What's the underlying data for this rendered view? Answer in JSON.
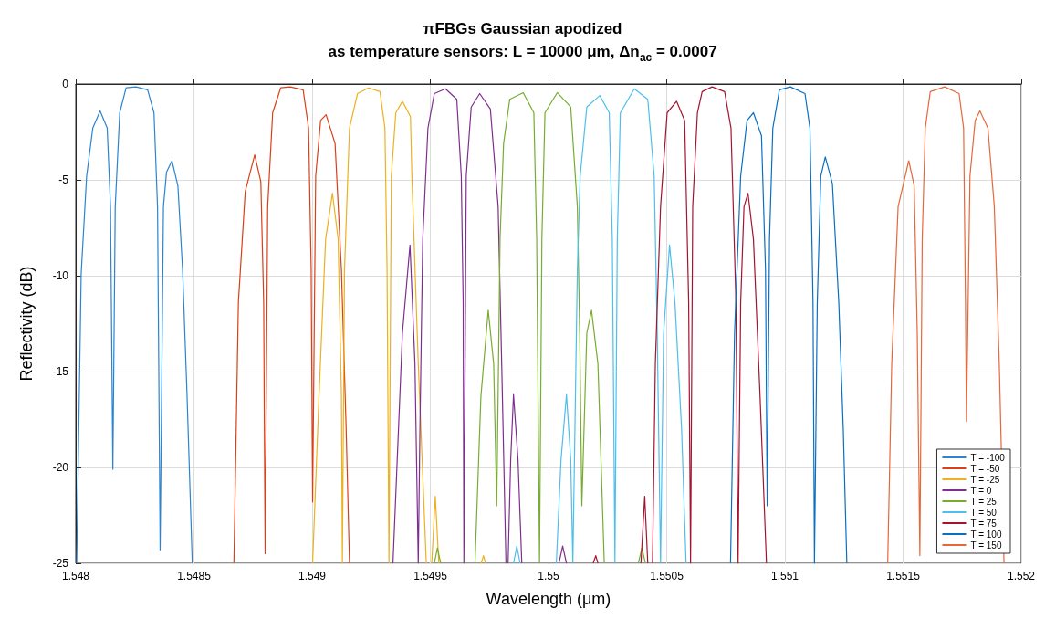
{
  "chart_data": {
    "type": "line",
    "title": "πFBGs Gaussian apodized\nas temperature sensors: L = 10000 μm, Δn$_{ac}$ = 0.0007",
    "xlabel": "Wavelength (μm)",
    "ylabel": "Reflectivity (dB)",
    "xlim": [
      1.548,
      1.552
    ],
    "xticks": [
      1.548,
      1.5485,
      1.549,
      1.5495,
      1.55,
      1.5505,
      1.551,
      1.5515,
      1.552
    ],
    "ylim": [
      -25,
      0
    ],
    "yticks": [
      -25,
      -20,
      -15,
      -10,
      -5,
      0
    ],
    "grid": true,
    "legend": "bottom right",
    "series": [
      {
        "name": "T = -100",
        "color": "#2b84d0",
        "x": [
          1.548004,
          1.548023,
          1.548046,
          1.548072,
          1.548103,
          1.548133,
          1.548147,
          1.548157,
          1.548167,
          1.548186,
          1.548213,
          1.548255,
          1.548304,
          1.548331,
          1.548346,
          1.548357,
          1.548371,
          1.548384,
          1.548407,
          1.548432,
          1.548452,
          1.548471,
          1.548493
        ],
        "values": [
          -25,
          -9.9,
          -4.8,
          -2.3,
          -1.4,
          -2.3,
          -6.4,
          -20.1,
          -6.4,
          -1.5,
          -0.2,
          -0.15,
          -0.3,
          -1.5,
          -6.4,
          -24.3,
          -6.4,
          -4.6,
          -4.0,
          -5.3,
          -9.7,
          -16.3,
          -25
        ]
      },
      {
        "name": "T = -50",
        "color": "#d9401a",
        "x": [
          1.548669,
          1.548688,
          1.548717,
          1.548757,
          1.548783,
          1.548795,
          1.548801,
          1.548812,
          1.548833,
          1.548867,
          1.548907,
          1.548962,
          1.548985,
          1.548996,
          1.549002,
          1.549015,
          1.549036,
          1.549059,
          1.549097,
          1.549124,
          1.549144,
          1.549158
        ],
        "values": [
          -25,
          -11.4,
          -5.6,
          -3.7,
          -5.1,
          -11.4,
          -24.5,
          -6.4,
          -1.5,
          -0.2,
          -0.15,
          -0.3,
          -2.3,
          -9.7,
          -21.8,
          -4.8,
          -1.9,
          -1.6,
          -3.1,
          -9.7,
          -18,
          -25
        ]
      },
      {
        "name": "T = -25",
        "color": "#edb120",
        "x": [
          1.549002,
          1.549029,
          1.549057,
          1.549086,
          1.54911,
          1.549124,
          1.549128,
          1.549137,
          1.549158,
          1.549192,
          1.549239,
          1.549287,
          1.549308,
          1.549317,
          1.549325,
          1.549335,
          1.549354,
          1.549382,
          1.549416,
          1.549422,
          1.549449,
          1.549483,
          1.549495,
          1.549506,
          1.549521,
          1.549536,
          1.549625,
          1.549715,
          1.549725,
          1.549734
        ],
        "values": [
          -25,
          -16.3,
          -8.1,
          -5.7,
          -8.1,
          -16.3,
          -25,
          -9.7,
          -2.3,
          -0.5,
          -0.2,
          -0.4,
          -2.3,
          -9.7,
          -25,
          -4.8,
          -1.5,
          -0.9,
          -1.7,
          -4.8,
          -14.6,
          -25,
          null,
          -25,
          -21.5,
          -25,
          null,
          -25,
          -24.6,
          -25
        ]
      },
      {
        "name": "T = 0",
        "color": "#7e2f8e",
        "x": [
          1.549342,
          1.549382,
          1.549414,
          1.549435,
          1.549449,
          1.549456,
          1.549468,
          1.54949,
          1.549517,
          1.549564,
          1.549612,
          1.549631,
          1.549639,
          1.549642,
          1.549652,
          1.549673,
          1.549709,
          1.549754,
          1.549787,
          1.549802,
          1.54982,
          1.549825,
          1.549829,
          1.54984,
          1.549852,
          1.549871,
          1.549887,
          1.549965,
          1.550044,
          1.55006,
          1.550076
        ],
        "values": [
          -25,
          -13,
          -8.4,
          -14.6,
          -25,
          -18,
          -8.1,
          -2.3,
          -0.5,
          -0.25,
          -0.8,
          -4.8,
          -11.4,
          -25,
          -4.8,
          -1.2,
          -0.5,
          -1.3,
          -6.4,
          -14.6,
          -25,
          null,
          -25,
          -19.6,
          -16.2,
          -19.6,
          -25,
          null,
          -25,
          -24.1,
          -25
        ]
      },
      {
        "name": "T = 25",
        "color": "#77ac30",
        "x": [
          1.549517,
          1.54953,
          1.549544,
          1.549616,
          1.549689,
          1.549714,
          1.549745,
          1.549768,
          1.549781,
          1.549795,
          1.54981,
          1.549836,
          1.549893,
          1.549938,
          1.54995,
          1.549962,
          1.549972,
          1.549985,
          1.550037,
          1.550094,
          1.550122,
          1.550132,
          1.550141,
          1.550162,
          1.550182,
          1.550209,
          1.550236,
          1.550308,
          1.55038,
          1.550395,
          1.55041
        ],
        "values": [
          -25,
          -24.2,
          -25,
          null,
          -25,
          -16.3,
          -11.8,
          -14.6,
          -22,
          -8.1,
          -3.1,
          -0.8,
          -0.45,
          -1.5,
          -8.1,
          -25,
          -8.1,
          -1.5,
          -0.45,
          -1.2,
          -6.4,
          -13,
          -22,
          -13,
          -11.8,
          -14.6,
          -25,
          null,
          -25,
          -24.2,
          -25
        ]
      },
      {
        "name": "T = 50",
        "color": "#4dbeee",
        "x": [
          1.549852,
          1.549866,
          1.54988,
          1.549956,
          1.550033,
          1.550053,
          1.550076,
          1.550094,
          1.550103,
          1.550122,
          1.550134,
          1.550162,
          1.550217,
          1.550257,
          1.55027,
          1.550281,
          1.550291,
          1.550304,
          1.550363,
          1.55042,
          1.550447,
          1.55046,
          1.550474,
          1.550487,
          1.550512,
          1.550535,
          1.550563,
          1.550582
        ],
        "values": [
          -25,
          -24.1,
          -25,
          null,
          -25,
          -19.6,
          -16.2,
          -19.6,
          -25,
          -9.7,
          -4.8,
          -1.2,
          -0.6,
          -1.5,
          -8.1,
          -25,
          -8.1,
          -1.5,
          -0.25,
          -0.8,
          -4.8,
          -13,
          -25,
          -13,
          -8.4,
          -11.4,
          -18,
          -25
        ]
      },
      {
        "name": "T = 75",
        "color": "#a2142f",
        "x": [
          1.550189,
          1.5502,
          1.550209,
          1.5503,
          1.550391,
          1.550407,
          1.55042,
          1.55043,
          1.55044,
          1.550452,
          1.550474,
          1.550502,
          1.550542,
          1.550576,
          1.550593,
          1.550601,
          1.55061,
          1.55063,
          1.55065,
          1.550692,
          1.550745,
          1.550772,
          1.550793,
          1.550802,
          1.550813,
          1.550827,
          1.550844,
          1.550867,
          1.550895,
          1.550922
        ],
        "values": [
          -25,
          -24.6,
          -25,
          null,
          -25,
          -21.5,
          -25,
          null,
          -25,
          -14.6,
          -6.4,
          -1.5,
          -0.9,
          -1.9,
          -11.4,
          -25,
          -6.4,
          -1.5,
          -0.4,
          -0.15,
          -0.4,
          -2.3,
          -11.4,
          -25,
          -11.4,
          -6.4,
          -5.7,
          -8.1,
          -16.3,
          -25
        ]
      },
      {
        "name": "T = 100",
        "color": "#0a6fc0",
        "x": [
          1.55077,
          1.550787,
          1.550813,
          1.55084,
          1.550867,
          1.550901,
          1.550918,
          1.550925,
          1.550935,
          1.550949,
          1.550977,
          1.551023,
          1.551085,
          1.551106,
          1.551119,
          1.551125,
          1.551137,
          1.551152,
          1.551171,
          1.551201,
          1.551228,
          1.551247,
          1.551262
        ],
        "values": [
          -25,
          -13,
          -4.8,
          -1.9,
          -1.5,
          -2.7,
          -9.7,
          -22,
          -8.1,
          -2.3,
          -0.3,
          -0.15,
          -0.5,
          -2.3,
          -11.4,
          -25,
          -11.4,
          -4.8,
          -3.8,
          -5.2,
          -11.4,
          -18,
          -25
        ]
      },
      {
        "name": "T = 150",
        "color": "#e4683a",
        "x": [
          1.551435,
          1.551452,
          1.551479,
          1.551524,
          1.551547,
          1.55156,
          1.551571,
          1.551581,
          1.551594,
          1.551615,
          1.551676,
          1.551737,
          1.551756,
          1.551764,
          1.551768,
          1.551783,
          1.551805,
          1.551825,
          1.551859,
          1.551886,
          1.551907,
          1.551927
        ],
        "values": [
          -25,
          -14.6,
          -6.4,
          -4.0,
          -5.3,
          -13,
          -24.6,
          -8.1,
          -2.3,
          -0.4,
          -0.15,
          -0.5,
          -2.3,
          -11.4,
          -17.6,
          -4.8,
          -1.9,
          -1.4,
          -2.3,
          -6.4,
          -14.6,
          -25
        ]
      }
    ]
  }
}
